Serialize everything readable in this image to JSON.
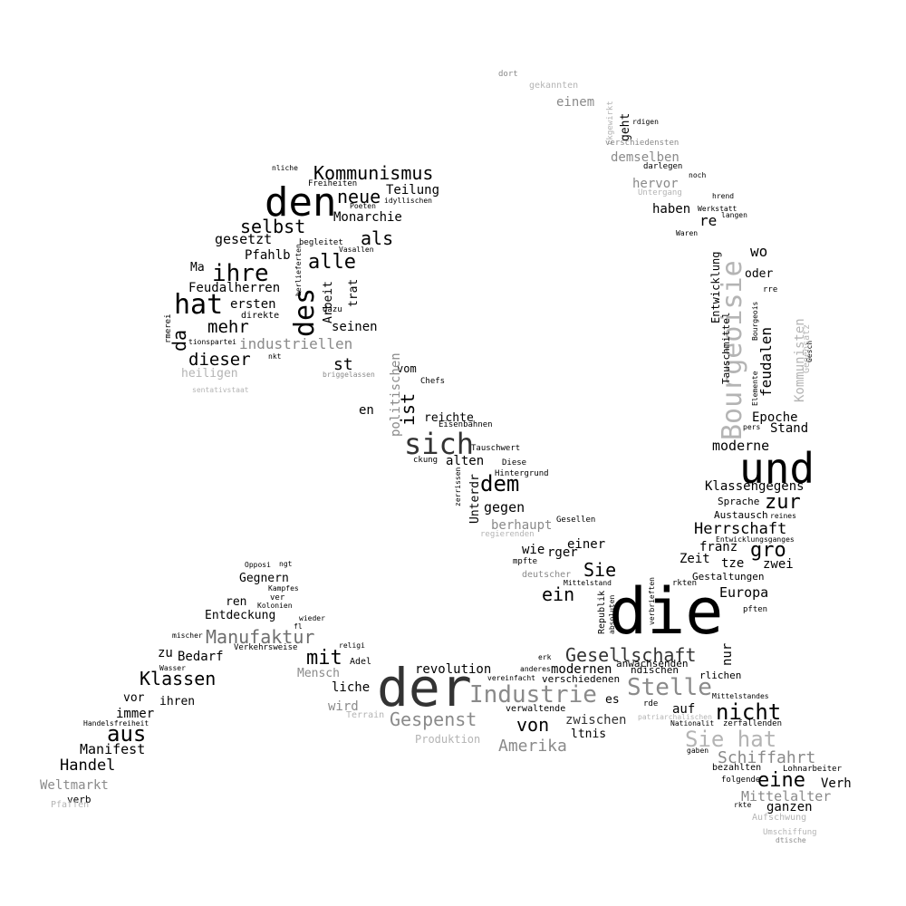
{
  "colors": {
    "background": "#ffffff",
    "black": "#000000",
    "dark": "#333333",
    "mid": "#6e6e6e",
    "grey": "#8a8a8a",
    "light": "#b4b4b4"
  },
  "words": [
    "die",
    "der",
    "und",
    "den",
    "sich",
    "Bourgeoisie",
    "Industrie",
    "Stelle",
    "hat",
    "des",
    "Sie hat",
    "nicht",
    "dem",
    "aus",
    "ihre",
    "eine",
    "Gesellschaft",
    "Gespenst",
    "Kommunismus",
    "Manufaktur",
    "zur",
    "gro",
    "mit",
    "Klassen",
    "von",
    "alle",
    "neue",
    "selbst",
    "ein",
    "Sie",
    "ist",
    "als",
    "da",
    "mehr",
    "dieser",
    "Amerika",
    "Schiffahrt",
    "Handel",
    "Herrschaft",
    "Europa",
    "industriellen",
    "Mittelalter",
    "Manifest",
    "moderne",
    "Klassengegens",
    "feudalen",
    "Epoche",
    "Stand",
    "revolution",
    "modernen",
    "zwischen",
    "gegen",
    "alten",
    "reichte",
    "Teilung",
    "Monarchie",
    "gesetzt",
    "Pfahlb",
    "Feudalherren",
    "ersten",
    "seinen",
    "st",
    "vom",
    "wie",
    "einer",
    "rger",
    "franz",
    "Zeit",
    "tze",
    "zwei",
    "auf",
    "es",
    "ganzen",
    "Verh",
    "Gegnern",
    "ren",
    "Entdeckung",
    "Bedarf",
    "zu",
    "vor",
    "immer",
    "ihren",
    "Weltmarkt",
    "Ma",
    "haben",
    "re",
    "wo",
    "oder",
    "hervor",
    "demselben",
    "einem",
    "geht",
    "Mensch",
    "wird",
    "Produktion",
    "liche",
    "ltnis",
    "nur",
    "heiligen",
    "berhaupt",
    "Unterdr",
    "politischen",
    "en",
    "Kommunisten",
    "Entwicklung",
    "Tauschmittel",
    "Arbeit",
    "trat",
    "Adel",
    "verwaltende",
    "verschiedenen",
    "anwachsenden",
    "ndischen",
    "rlichen",
    "Gestaltungen",
    "Austausch",
    "Sprache",
    "verb",
    "Pfaffen",
    "Chefs",
    "Eisenbahnen",
    "Tauschwert",
    "Diese",
    "ckung",
    "Hintergrund",
    "zerrissen",
    "Gesellen",
    "regierenden",
    "deutscher",
    "mpfte",
    "Mittelstand",
    "Republik",
    "absoluten",
    "verbrieften",
    "rkten",
    "pften",
    "erk",
    "anderes",
    "vereinfacht",
    "rde",
    "patriarchalischen",
    "Nationalit",
    "zerfallenden",
    "Mittelstandes",
    "gaben",
    "bezahlten",
    "Lohnarbeiter",
    "folgende",
    "rkte",
    "Aufschwung",
    "Umschiffung",
    "dtische",
    "Terrain",
    "religi",
    "Verkehrsweise",
    "Wasser",
    "mischer",
    "fl",
    "wieder",
    "Kolonien",
    "ver",
    "Kampfes",
    "Opposi",
    "ngt",
    "Handelsfreiheit",
    "nliche",
    "Freiheiten",
    "idyllischen",
    "Poeten",
    "begleitet",
    "Vasallen",
    "berlieferten",
    "direkte",
    "dazu",
    "tionspartei",
    "rmerei",
    "nkt",
    "briggelassen",
    "sentativstaat",
    "dort",
    "gekannten",
    "ckgewirkt",
    "rdigen",
    "verschiedensten",
    "darlegen",
    "noch",
    "Untergang",
    "hrend",
    "Werkstatt",
    "langen",
    "Waren",
    "rre",
    "Elemente",
    "Bourgeois",
    "Gesch",
    "pers",
    "reines",
    "Entwicklungsganges",
    "Gegensatz"
  ]
}
